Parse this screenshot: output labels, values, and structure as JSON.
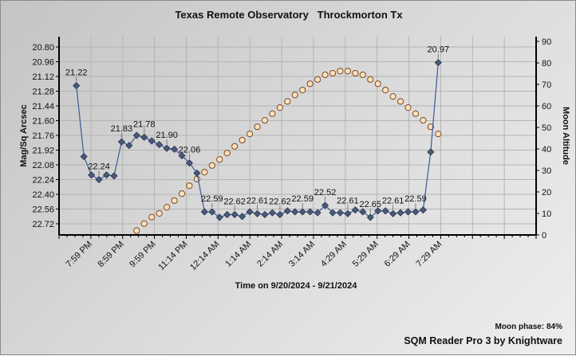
{
  "chart_data": {
    "type": "line",
    "title": "Texas Remote Observatory   Throckmorton Tx",
    "xlabel": "Time on 9/20/2024 - 9/21/2024",
    "ylabel": "Mag/Sq Arcsec",
    "y2label": "Moon Altitude",
    "x_tick_labels": [
      "7:59 PM",
      "8:59 PM",
      "9:59 PM",
      "11:14 PM",
      "12:14 AM",
      "1:14 AM",
      "2:14 AM",
      "3:14 AM",
      "4:29 AM",
      "5:29 AM",
      "6:29 AM",
      "7:29 AM"
    ],
    "y_ticks": [
      "20.80",
      "20.96",
      "21.12",
      "21.28",
      "21.44",
      "21.60",
      "21.76",
      "21.92",
      "22.08",
      "22.24",
      "22.40",
      "22.56",
      "22.72"
    ],
    "y_inverted": true,
    "ylim": [
      20.74,
      22.84
    ],
    "y2_ticks": [
      "0",
      "10",
      "20",
      "30",
      "40",
      "50",
      "60",
      "70",
      "80",
      "90"
    ],
    "y2lim": [
      0,
      90
    ],
    "grid": true,
    "series": [
      {
        "name": "Mag/Sq Arcsec",
        "axis": "left",
        "marker": "diamond",
        "color": "#4a5a7a",
        "line_color": "#3a5a9a",
        "values": [
          21.22,
          21.99,
          22.19,
          22.24,
          22.19,
          22.2,
          21.83,
          21.87,
          21.76,
          21.78,
          21.82,
          21.86,
          21.9,
          21.91,
          21.98,
          22.06,
          22.17,
          22.59,
          22.59,
          22.65,
          22.62,
          22.62,
          22.64,
          22.59,
          22.61,
          22.62,
          22.6,
          22.62,
          22.58,
          22.59,
          22.59,
          22.59,
          22.6,
          22.52,
          22.6,
          22.6,
          22.61,
          22.57,
          22.59,
          22.65,
          22.58,
          22.58,
          22.61,
          22.6,
          22.59,
          22.59,
          22.57,
          21.94,
          20.97
        ],
        "labeled_every": 3
      },
      {
        "name": "Moon Altitude",
        "axis": "right",
        "marker": "circle",
        "color": "#fde0c0",
        "start_index": 8,
        "values": [
          2.0,
          5.3,
          8.3,
          10.0,
          12.9,
          16.0,
          19.2,
          22.9,
          26.0,
          29.2,
          32.3,
          35.1,
          38.1,
          41.2,
          44.1,
          47.0,
          50.3,
          53.3,
          56.4,
          59.2,
          62.1,
          65.1,
          67.4,
          70.3,
          72.3,
          74.5,
          75.2,
          76.2,
          76.2,
          75.2,
          74.5,
          72.3,
          70.3,
          67.4,
          64.4,
          62.1,
          59.2,
          56.4,
          53.3,
          50.3,
          47.0
        ]
      }
    ],
    "moon_phase": "Moon phase: 84%",
    "footer": "SQM Reader Pro 3 by Knightware"
  }
}
